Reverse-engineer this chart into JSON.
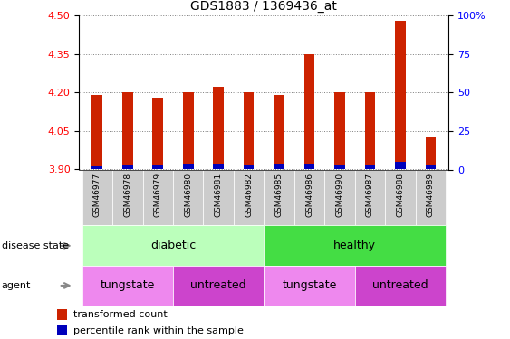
{
  "title": "GDS1883 / 1369436_at",
  "samples": [
    "GSM46977",
    "GSM46978",
    "GSM46979",
    "GSM46980",
    "GSM46981",
    "GSM46982",
    "GSM46985",
    "GSM46986",
    "GSM46990",
    "GSM46987",
    "GSM46988",
    "GSM46989"
  ],
  "transformed_count": [
    4.19,
    4.2,
    4.18,
    4.2,
    4.22,
    4.2,
    4.19,
    4.35,
    4.2,
    4.2,
    4.48,
    4.03
  ],
  "percentile_rank": [
    2,
    3,
    3,
    4,
    4,
    3,
    4,
    4,
    3,
    3,
    5,
    3
  ],
  "ylim_left": [
    3.9,
    4.5
  ],
  "ylim_right": [
    0,
    100
  ],
  "yticks_left": [
    3.9,
    4.05,
    4.2,
    4.35,
    4.5
  ],
  "yticks_right": [
    0,
    25,
    50,
    75,
    100
  ],
  "bar_color_red": "#cc2200",
  "bar_color_blue": "#0000bb",
  "bar_width": 0.35,
  "disease_state_groups": [
    {
      "label": "diabetic",
      "start": 0,
      "end": 5,
      "color": "#bbffbb"
    },
    {
      "label": "healthy",
      "start": 6,
      "end": 11,
      "color": "#44dd44"
    }
  ],
  "agent_groups": [
    {
      "label": "tungstate",
      "start": 0,
      "end": 2,
      "color": "#ee88ee"
    },
    {
      "label": "untreated",
      "start": 3,
      "end": 5,
      "color": "#cc44cc"
    },
    {
      "label": "tungstate",
      "start": 6,
      "end": 8,
      "color": "#ee88ee"
    },
    {
      "label": "untreated",
      "start": 9,
      "end": 11,
      "color": "#cc44cc"
    }
  ],
  "legend_items": [
    {
      "label": "transformed count",
      "color": "#cc2200"
    },
    {
      "label": "percentile rank within the sample",
      "color": "#0000bb"
    }
  ],
  "xtick_bg": "#cccccc",
  "arrow_color": "#888888"
}
